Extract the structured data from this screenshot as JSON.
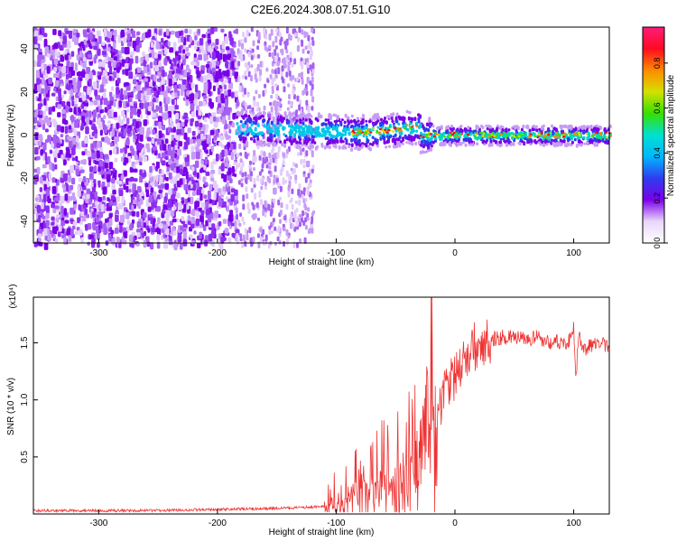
{
  "title": "C2E6.2024.308.07.51.G10",
  "chart_data": [
    {
      "type": "heatmap",
      "xlabel": "Height of straight line (km)",
      "ylabel": "Frequency (Hz)",
      "xlim": [
        -355,
        130
      ],
      "ylim": [
        -50,
        50
      ],
      "xticks": [
        -300,
        -200,
        -100,
        0,
        100
      ],
      "yticks": [
        -40,
        -20,
        0,
        20,
        40
      ],
      "colorbar": {
        "label": "Normalized spectral amplitude",
        "range": [
          0,
          0.96
        ],
        "ticks": [
          0.0,
          0.2,
          0.4,
          0.6,
          0.8
        ],
        "colors": [
          "#ffffff",
          "#e9d6fb",
          "#7a00e8",
          "#2f3cf0",
          "#00b7ff",
          "#00e0d0",
          "#36e000",
          "#d4e000",
          "#ff8a00",
          "#ff0a20",
          "#ff1c7a"
        ]
      }
    },
    {
      "type": "line",
      "xlabel": "Height of straight line (km)",
      "ylabel": "SNR (10 * v/v)",
      "y_multiplier": "(x10⁴)",
      "xlim": [
        -355,
        130
      ],
      "ylim": [
        0,
        1.9
      ],
      "xticks": [
        -300,
        -200,
        -100,
        0,
        100
      ],
      "yticks": [
        0.5,
        1.0,
        1.5
      ],
      "line_color": "#ee3333",
      "series": [
        {
          "x": [
            -355,
            -300,
            -250,
            -200,
            -150,
            -120,
            -110,
            -100,
            -90,
            -85,
            -80,
            -75,
            -70,
            -65,
            -60,
            -55,
            -50,
            -45,
            -40,
            -35,
            -30,
            -27,
            -24,
            -21,
            -19,
            -17,
            -15,
            -12,
            -9,
            -6,
            -3,
            0,
            5,
            10,
            15,
            20,
            25,
            30,
            35,
            40,
            50,
            60,
            70,
            80,
            90,
            95,
            100,
            102,
            104,
            110,
            120,
            130
          ],
          "y": [
            0.03,
            0.03,
            0.03,
            0.04,
            0.05,
            0.06,
            0.07,
            0.09,
            0.15,
            0.24,
            0.32,
            0.3,
            0.27,
            0.33,
            0.36,
            0.33,
            0.4,
            0.38,
            0.45,
            0.55,
            0.65,
            0.8,
            1.1,
            1.25,
            1.5,
            0.6,
            0.95,
            0.95,
            1.05,
            1.1,
            1.15,
            1.2,
            1.3,
            1.37,
            1.45,
            1.5,
            1.52,
            1.53,
            1.54,
            1.55,
            1.55,
            1.52,
            1.55,
            1.5,
            1.52,
            1.48,
            1.65,
            1.15,
            1.55,
            1.45,
            1.5,
            1.48
          ]
        }
      ]
    }
  ]
}
